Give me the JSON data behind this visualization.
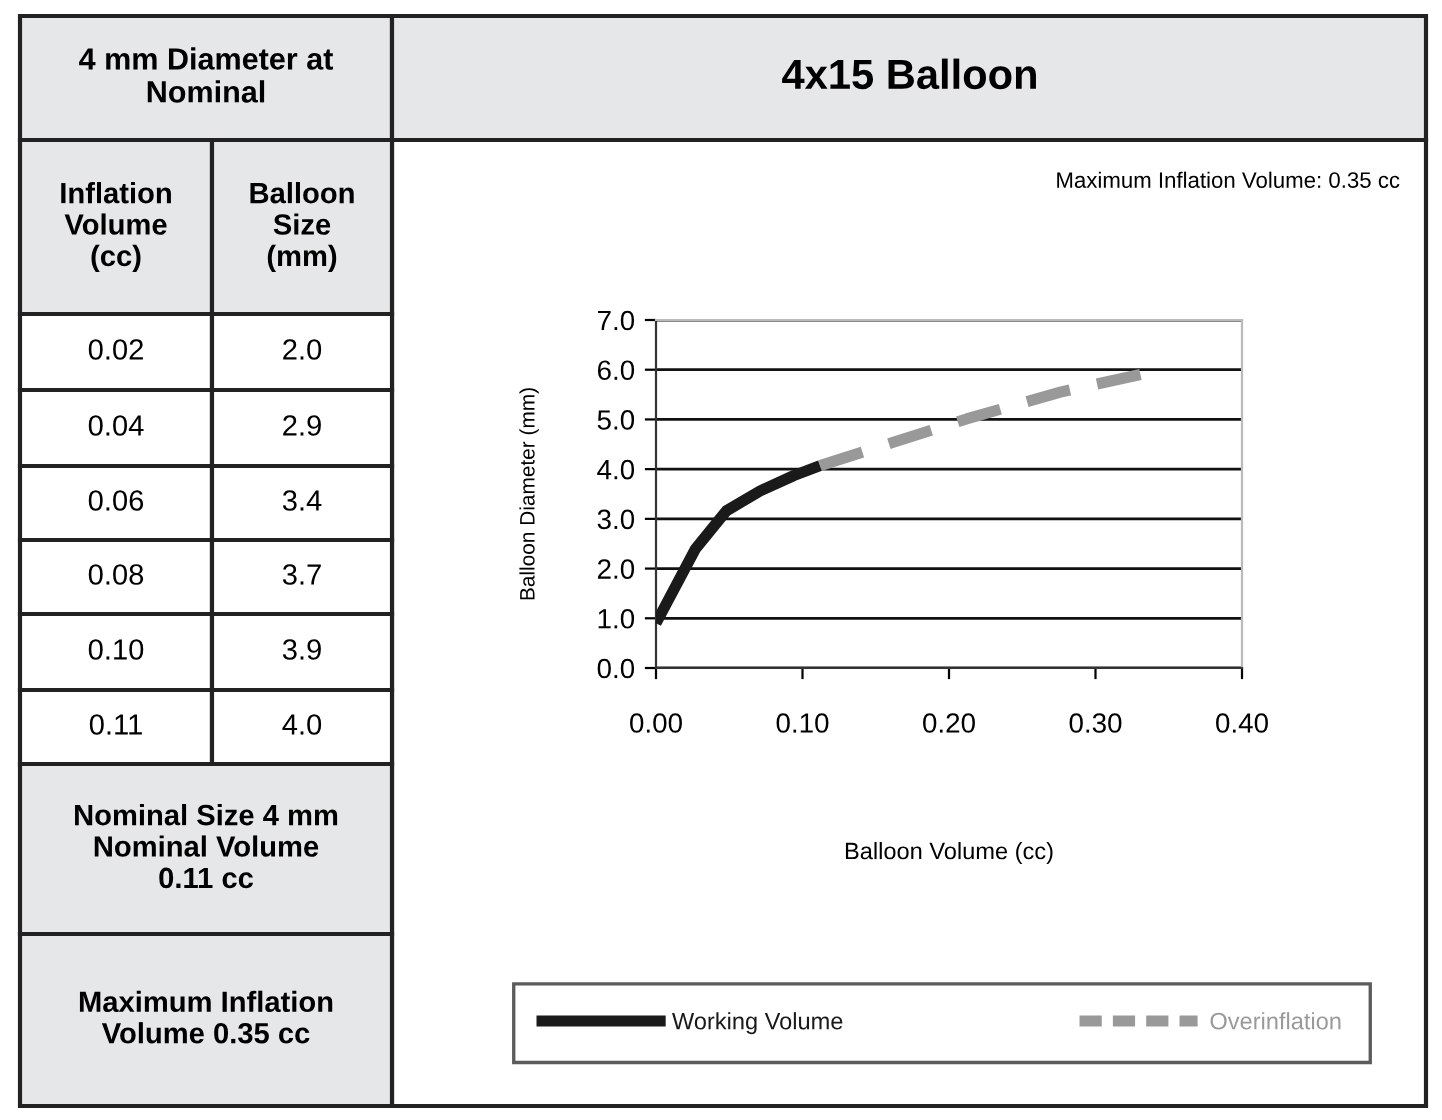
{
  "chart_data": {
    "type": "line",
    "title": "4x15 Balloon",
    "xlabel": "Balloon Volume (cc)",
    "ylabel": "Balloon Diameter (mm)",
    "series": [
      {
        "name": "Working Volume",
        "color": "#1a1a1a",
        "line_style": "solid",
        "x": [
          0.0,
          0.027,
          0.048,
          0.071,
          0.094,
          0.112
        ],
        "values": [
          0.9,
          2.4,
          3.16,
          3.56,
          3.87,
          4.07
        ]
      },
      {
        "name": "Overinflation",
        "color": "#999999",
        "line_style": "dashed",
        "x": [
          0.112,
          0.162,
          0.212,
          0.276,
          0.344
        ],
        "values": [
          4.07,
          4.54,
          5.01,
          5.55,
          5.99
        ]
      }
    ],
    "xlim": [
      0,
      0.4
    ],
    "xticks": [
      {
        "value": 0,
        "label": "0.00"
      },
      {
        "value": 0.1,
        "label": "0.10"
      },
      {
        "value": 0.2,
        "label": "0.20"
      },
      {
        "value": 0.3,
        "label": "0.30"
      },
      {
        "value": 0.4,
        "label": "0.40"
      }
    ],
    "ylim": [
      0,
      7
    ],
    "yticks": [
      {
        "value": 0,
        "label": "0.0"
      },
      {
        "value": 1,
        "label": "1.0"
      },
      {
        "value": 2,
        "label": "2.0"
      },
      {
        "value": 3,
        "label": "3.0"
      },
      {
        "value": 4,
        "label": "4.0"
      },
      {
        "value": 5,
        "label": "5.0"
      },
      {
        "value": 6,
        "label": "6.0"
      },
      {
        "value": 7,
        "label": "7.0"
      }
    ],
    "grid": "y",
    "legend": "bottom",
    "marker": "none",
    "annotations": [
      "4 mm Diameter at Nominal",
      "Inflation Volume (cc)",
      "Balloon Size (mm)",
      "0.02",
      "2.0",
      "0.04",
      "2.9",
      "0.06",
      "3.4",
      "0.08",
      "3.7",
      "0.10",
      "3.9",
      "0.11",
      "4.0",
      "Nominal Size 4 mm Nominal Volume 0.11 cc",
      "Maximum Inflation Volume 0.35 cc",
      "Maximum Inflation Volume: 0.35 cc"
    ]
  }
}
